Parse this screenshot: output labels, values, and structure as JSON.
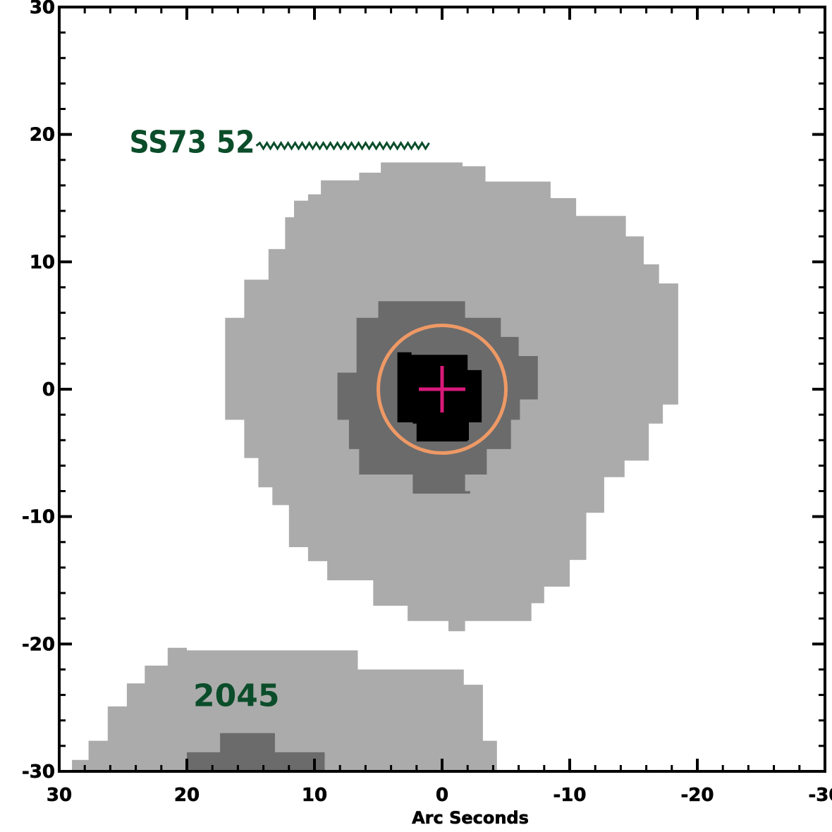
{
  "chart_data": {
    "type": "scatter",
    "title": "",
    "xlabel": "Arc Seconds",
    "ylabel": "",
    "xlim": [
      30,
      -30
    ],
    "ylim": [
      -30,
      30
    ],
    "x_reversed": true,
    "xticks": [
      30,
      20,
      10,
      0,
      -10,
      -20,
      -30
    ],
    "xtick_labels": [
      "30",
      "20",
      "10",
      "0",
      "-10",
      "-20",
      "-30"
    ],
    "yticks": [
      -30,
      -20,
      -10,
      0,
      10,
      20,
      30
    ],
    "ytick_labels": [
      "-30",
      "-20",
      "-10",
      "0",
      "10",
      "20",
      "30"
    ],
    "grid": false,
    "annotations": [
      {
        "text": "SS73 52",
        "x": 24.5,
        "y": 19.0
      },
      {
        "text": "2045",
        "x": 19.5,
        "y": -24.0
      }
    ],
    "series": [
      {
        "marker": "cross",
        "points": [
          {
            "x": 0,
            "y": 0
          }
        ]
      },
      {
        "marker": "circle",
        "points": [
          {
            "x": 0,
            "y": 0,
            "radius": 5
          }
        ]
      }
    ],
    "image_levels": [
      {
        "level": "outer",
        "color": "#ababab"
      },
      {
        "level": "middle",
        "color": "#6b6b6b"
      },
      {
        "level": "inner",
        "color": "#000000"
      }
    ],
    "colors": {
      "cross": "#d8197a",
      "circle": "#ee9966",
      "annotation": "#0b4d2a",
      "axes": "#000000",
      "background": "#ffffff"
    }
  }
}
